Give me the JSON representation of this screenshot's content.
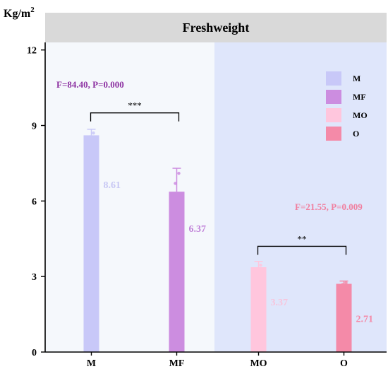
{
  "chart_data": {
    "type": "bar",
    "title": "Freshweight",
    "ylabel": "Kg/m²",
    "ylim": [
      0,
      12
    ],
    "y_ticks": [
      "0",
      "3",
      "6",
      "9",
      "12"
    ],
    "categories": [
      "M",
      "MF",
      "MO",
      "O"
    ],
    "values": [
      8.61,
      6.37,
      3.37,
      2.71
    ],
    "value_labels": [
      "8.61",
      "6.37",
      "3.37",
      "2.71"
    ],
    "error_upper": [
      8.85,
      7.3,
      3.6,
      2.82
    ],
    "sample_points": [
      [
        8.55,
        8.7
      ],
      [
        6.7,
        7.1
      ],
      [
        3.3,
        3.45
      ],
      [
        2.68,
        2.75
      ]
    ],
    "colors": [
      "#c8c8f8",
      "#cc8de0",
      "#ffc6dd",
      "#f48aa8"
    ],
    "value_label_colors": [
      "#c8c8f4",
      "#c183d9",
      "#f7c5dc",
      "#f489a7"
    ],
    "legend": {
      "position": "top-right",
      "entries": [
        "M",
        "MF",
        "MO",
        "O"
      ]
    },
    "panels": [
      {
        "categories": [
          "M",
          "MF"
        ],
        "background": "#f5f8fc",
        "stat": "F=84.40, P=0.000",
        "stat_color": "#8b2fa0",
        "bracket_label": "***"
      },
      {
        "categories": [
          "MO",
          "O"
        ],
        "background": "#dfe6fb",
        "stat": "F=21.55, P=0.009",
        "stat_color": "#f080a0",
        "bracket_label": "**"
      }
    ],
    "grid": false
  }
}
